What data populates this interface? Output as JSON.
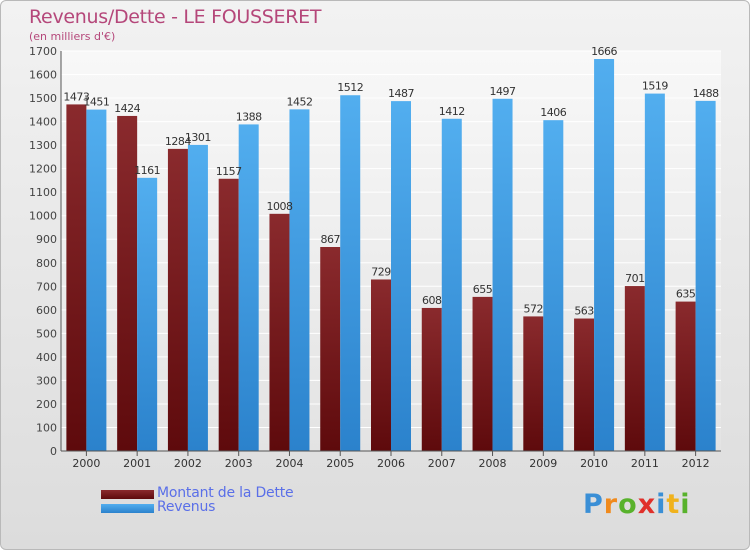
{
  "title": "Revenus/Dette - LE FOUSSERET",
  "subtitle": "(en milliers d'€)",
  "logo": {
    "text": "Proxiti",
    "letters": [
      {
        "ch": "P",
        "color": "#3a8fd6"
      },
      {
        "ch": "r",
        "color": "#f08a1c"
      },
      {
        "ch": "o",
        "color": "#58b22c"
      },
      {
        "ch": "x",
        "color": "#e0302a"
      },
      {
        "ch": "i",
        "color": "#3a8fd6"
      },
      {
        "ch": "t",
        "color": "#f0b21c"
      },
      {
        "ch": "i",
        "color": "#58b22c"
      }
    ]
  },
  "chart_data": {
    "type": "bar",
    "title": "Revenus/Dette - LE FOUSSERET",
    "subtitle": "(en milliers d'€)",
    "xlabel": "",
    "ylabel": "",
    "categories": [
      "2000",
      "2001",
      "2002",
      "2003",
      "2004",
      "2005",
      "2006",
      "2007",
      "2008",
      "2009",
      "2010",
      "2011",
      "2012"
    ],
    "series": [
      {
        "name": "Montant de la Dette",
        "color": "#7a1518",
        "values": [
          1473,
          1424,
          1284,
          1157,
          1008,
          867,
          729,
          608,
          655,
          572,
          563,
          701,
          635
        ]
      },
      {
        "name": "Revenus",
        "color": "#3d9ee4",
        "values": [
          1451,
          1161,
          1301,
          1388,
          1452,
          1512,
          1487,
          1412,
          1497,
          1406,
          1666,
          1519,
          1488
        ]
      }
    ],
    "ylim": [
      0,
      1700
    ],
    "ytick_step": 100,
    "grid": true,
    "legend_position": "bottom-left"
  }
}
